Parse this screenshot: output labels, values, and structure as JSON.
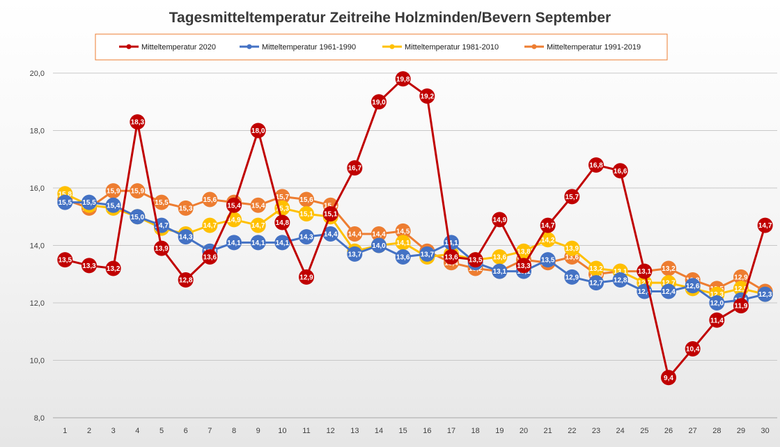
{
  "chart_data": {
    "type": "line",
    "title": "Tagesmitteltemperatur Zeitreihe Holzminden/Bevern September",
    "xlabel": "",
    "ylabel": "",
    "x": [
      1,
      2,
      3,
      4,
      5,
      6,
      7,
      8,
      9,
      10,
      11,
      12,
      13,
      14,
      15,
      16,
      17,
      18,
      19,
      20,
      21,
      22,
      23,
      24,
      25,
      26,
      27,
      28,
      29,
      30
    ],
    "ylim": [
      8,
      20
    ],
    "yticks": [
      8,
      10,
      12,
      14,
      16,
      18,
      20
    ],
    "ytick_labels": [
      "8,0",
      "10,0",
      "12,0",
      "14,0",
      "16,0",
      "18,0",
      "20,0"
    ],
    "grid": true,
    "legend_position": "top",
    "series": [
      {
        "name": "Mitteltemperatur 2020",
        "color": "#C00000",
        "values": [
          13.5,
          13.3,
          13.2,
          18.3,
          13.9,
          12.8,
          13.6,
          15.4,
          18.0,
          14.8,
          12.9,
          15.1,
          16.7,
          19.0,
          19.8,
          19.2,
          13.6,
          13.5,
          14.9,
          13.3,
          14.7,
          15.7,
          16.8,
          16.6,
          13.1,
          9.4,
          10.4,
          11.4,
          11.9,
          14.7
        ],
        "labels": [
          "13,5",
          "13,3",
          "13,2",
          "18,3",
          "13,9",
          "12,8",
          "13,6",
          "15,4",
          "18,0",
          "14,8",
          "12,9",
          "15,1",
          "16,7",
          "19,0",
          "19,8",
          "19,2",
          "13,6",
          "13,5",
          "14,9",
          "13,3",
          "14,7",
          "15,7",
          "16,8",
          "16,6",
          "13,1",
          "9,4",
          "10,4",
          "11,4",
          "11,9",
          "14,7"
        ]
      },
      {
        "name": "Mitteltemperatur 1961-1990",
        "color": "#4472C4",
        "values": [
          15.5,
          15.5,
          15.4,
          15.0,
          14.7,
          14.3,
          13.8,
          14.1,
          14.1,
          14.1,
          14.3,
          14.4,
          13.7,
          14.0,
          13.6,
          13.7,
          14.1,
          13.4,
          13.1,
          13.1,
          13.5,
          12.9,
          12.7,
          12.8,
          12.4,
          12.4,
          12.6,
          12.0,
          12.1,
          12.3
        ],
        "labels": [
          "15,5",
          "15,5",
          "15,4",
          "15,0",
          "14,7",
          "14,3",
          "13,8",
          "14,1",
          "14,1",
          "14,1",
          "14,3",
          "14,4",
          "13,7",
          "14,0",
          "13,6",
          "13,7",
          "14,1",
          "13,4",
          "13,1",
          "13,1",
          "13,5",
          "12,9",
          "12,7",
          "12,8",
          "12,4",
          "12,4",
          "12,6",
          "12,0",
          "12,1",
          "12,3"
        ]
      },
      {
        "name": "Mitteltemperatur 1981-2010",
        "color": "#FFC000",
        "values": [
          15.8,
          15.4,
          15.3,
          15.0,
          14.6,
          14.4,
          14.7,
          14.9,
          14.7,
          15.3,
          15.1,
          15.0,
          13.8,
          14.0,
          14.1,
          13.6,
          13.7,
          13.5,
          13.6,
          13.8,
          14.2,
          13.9,
          13.2,
          13.1,
          12.7,
          12.7,
          12.5,
          12.3,
          12.5,
          12.3
        ],
        "labels": [
          "15,8",
          "15,4",
          "15,3",
          "15,0",
          "14,6",
          "14,4",
          "14,7",
          "14,9",
          "14,7",
          "15,3",
          "15,1",
          "15,0",
          "13,8",
          "14,0",
          "14,1",
          "13,6",
          "13,7",
          "13,5",
          "13,6",
          "13,8",
          "14,2",
          "13,9",
          "13,2",
          "13,1",
          "12,7",
          "12,7",
          "12,5",
          "12,3",
          "12,5",
          "12,3"
        ]
      },
      {
        "name": "Mitteltemperatur 1991-2019",
        "color": "#ED7D31",
        "values": [
          15.6,
          15.3,
          15.9,
          15.9,
          15.5,
          15.3,
          15.6,
          15.5,
          15.4,
          15.7,
          15.6,
          15.4,
          14.4,
          14.4,
          14.5,
          13.8,
          13.4,
          13.2,
          13.1,
          13.5,
          13.4,
          13.6,
          13.0,
          13.1,
          13.1,
          13.2,
          12.8,
          12.5,
          12.9,
          12.4
        ],
        "labels": [
          "15,6",
          "15,3",
          "15,9",
          "15,9",
          "15,5",
          "15,3",
          "15,6",
          "15,5",
          "15,4",
          "15,7",
          "15,6",
          "15,4",
          "14,4",
          "14,4",
          "14,5",
          "13,8",
          "13,4",
          "13,2",
          "13,1",
          "13,5",
          "13,4",
          "13,6",
          "13,0",
          "13,1",
          "13,1",
          "13,2",
          "12,8",
          "12,5",
          "12,9",
          "12,4"
        ]
      }
    ]
  }
}
